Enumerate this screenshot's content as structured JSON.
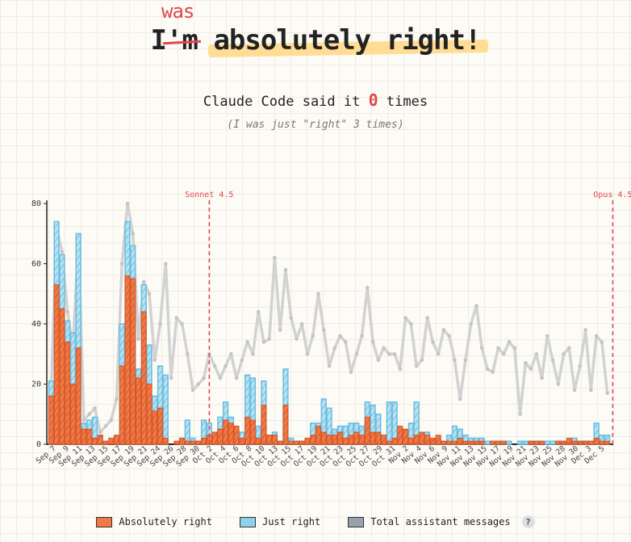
{
  "header": {
    "title_prefix": "I",
    "title_struck": "'m",
    "title_correction": "was",
    "title_rest": "absolutely right!",
    "subtitle_before": "Claude Code said it",
    "subtitle_count": "0",
    "subtitle_after": "times",
    "note": "(I was just \"right\" 3 times)"
  },
  "legend": {
    "absolutely": "Absolutely right",
    "just": "Just right",
    "total": "Total assistant messages",
    "info": "?"
  },
  "colors": {
    "absolutely": "#f07a45",
    "just": "#8fd0ea",
    "total": "#d2d2d2",
    "marker": "#e0474c"
  },
  "chart_data": {
    "type": "bar",
    "ylim": [
      0,
      80
    ],
    "y_ticks": [
      0,
      20,
      40,
      60,
      80
    ],
    "x_tick_labels": [
      "Sep 7",
      "Sep 9",
      "Sep 11",
      "Sep 13",
      "Sep 15",
      "Sep 17",
      "Sep 19",
      "Sep 21",
      "Sep 24",
      "Sep 26",
      "Sep 28",
      "Sep 30",
      "Oct 2",
      "Oct 4",
      "Oct 6",
      "Oct 8",
      "Oct 10",
      "Oct 13",
      "Oct 15",
      "Oct 17",
      "Oct 19",
      "Oct 21",
      "Oct 23",
      "Oct 25",
      "Oct 27",
      "Oct 29",
      "Oct 31",
      "Nov 2",
      "Nov 4",
      "Nov 6",
      "Nov 9",
      "Nov 11",
      "Nov 13",
      "Nov 15",
      "Nov 17",
      "Nov 19",
      "Nov 21",
      "Nov 23",
      "Nov 25",
      "Nov 28",
      "Nov 30",
      "Dec 3",
      "Dec 5"
    ],
    "annotations": [
      {
        "label": "Sonnet 4.5",
        "index": 29
      },
      {
        "label": "Opus 4.5",
        "index": 103
      }
    ],
    "series": [
      {
        "name": "Absolutely right",
        "values": [
          16,
          53,
          45,
          34,
          20,
          32,
          5,
          5,
          2,
          3,
          1,
          2,
          3,
          26,
          56,
          55,
          22,
          44,
          20,
          11,
          12,
          2,
          0,
          1,
          2,
          1,
          1,
          1,
          2,
          3,
          4,
          5,
          8,
          7,
          6,
          2,
          9,
          8,
          2,
          13,
          3,
          3,
          1,
          13,
          1,
          1,
          1,
          2,
          3,
          6,
          4,
          3,
          3,
          4,
          2,
          3,
          4,
          3,
          9,
          4,
          4,
          3,
          1,
          2,
          6,
          5,
          2,
          3,
          4,
          3,
          2,
          3,
          1,
          1,
          1,
          2,
          1,
          1,
          1,
          1,
          0,
          1,
          1,
          1,
          0,
          0,
          0,
          0,
          1,
          1,
          1,
          0,
          0,
          1,
          1,
          2,
          1,
          1,
          1,
          1,
          2,
          1,
          1
        ]
      },
      {
        "name": "Just right",
        "values": [
          21,
          74,
          63,
          41,
          37,
          70,
          7,
          8,
          9,
          3,
          1,
          0,
          1,
          40,
          74,
          66,
          25,
          53,
          33,
          16,
          26,
          23,
          0,
          0,
          2,
          8,
          2,
          1,
          8,
          7,
          3,
          9,
          14,
          9,
          2,
          4,
          23,
          22,
          6,
          21,
          3,
          4,
          1,
          25,
          2,
          1,
          1,
          1,
          7,
          7,
          15,
          12,
          5,
          6,
          6,
          7,
          7,
          6,
          14,
          13,
          10,
          3,
          14,
          14,
          5,
          3,
          7,
          14,
          3,
          4,
          1,
          2,
          1,
          3,
          6,
          5,
          3,
          2,
          2,
          2,
          1,
          1,
          1,
          1,
          1,
          0,
          1,
          1,
          1,
          1,
          1,
          1,
          1,
          1,
          1,
          1,
          2,
          1,
          1,
          1,
          7,
          3,
          3
        ]
      },
      {
        "name": "Total assistant messages",
        "values": [
          18,
          72,
          64,
          44,
          32,
          68,
          8,
          10,
          12,
          4,
          6,
          8,
          15,
          60,
          80,
          70,
          35,
          54,
          50,
          28,
          40,
          60,
          22,
          42,
          40,
          30,
          18,
          20,
          22,
          30,
          26,
          22,
          26,
          30,
          22,
          28,
          34,
          30,
          44,
          34,
          35,
          62,
          38,
          58,
          42,
          35,
          40,
          30,
          36,
          50,
          38,
          26,
          32,
          36,
          34,
          24,
          30,
          36,
          52,
          34,
          28,
          32,
          30,
          30,
          25,
          42,
          40,
          26,
          28,
          42,
          34,
          30,
          38,
          36,
          28,
          15,
          28,
          40,
          46,
          32,
          25,
          24,
          32,
          30,
          34,
          32,
          10,
          27,
          25,
          30,
          22,
          36,
          28,
          20,
          30,
          32,
          18,
          26,
          38,
          18,
          36,
          34,
          17
        ]
      }
    ]
  }
}
